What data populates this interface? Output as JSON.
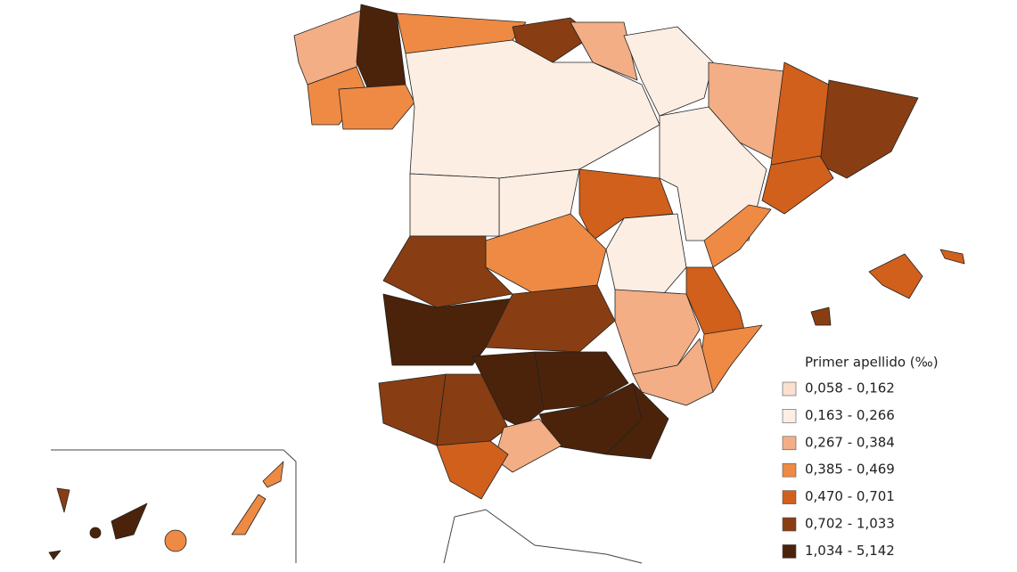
{
  "legend": {
    "title": "Primer apellido (‰)",
    "items": [
      {
        "label": "0,058 - 0,162",
        "color": "#f9e0d0"
      },
      {
        "label": "0,163 - 0,266",
        "color": "#fdeee4"
      },
      {
        "label": "0,267 - 0,384",
        "color": "#f3ae85"
      },
      {
        "label": "0,385 - 0,469",
        "color": "#ee8a44"
      },
      {
        "label": "0,470 - 0,701",
        "color": "#d1601c"
      },
      {
        "label": "0,702 - 1,033",
        "color": "#883e12"
      },
      {
        "label": "1,034 - 5,142",
        "color": "#4a230a"
      }
    ]
  }
}
